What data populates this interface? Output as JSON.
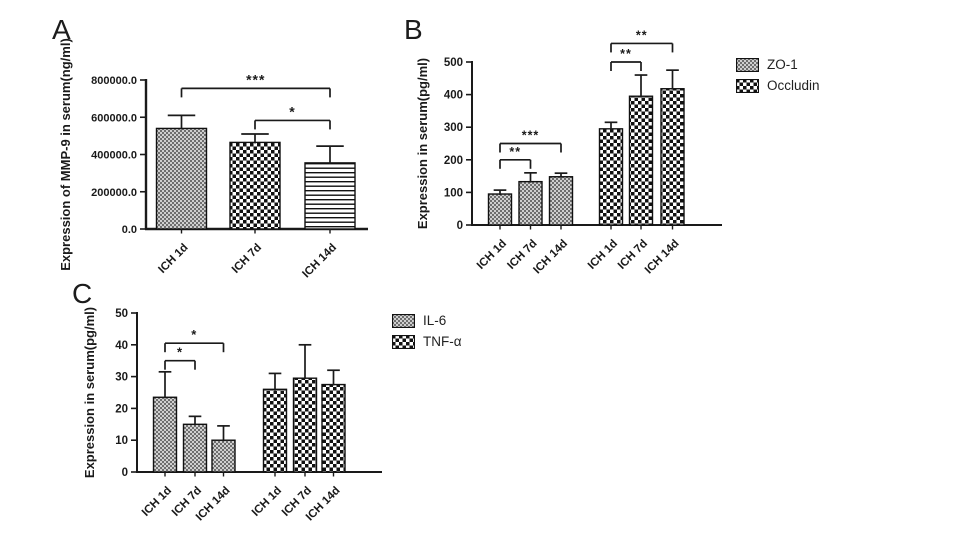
{
  "panels": {
    "a_label": "A",
    "b_label": "B",
    "c_label": "C"
  },
  "colors": {
    "axis": "#1a1a1a",
    "bar_stroke": "#111111",
    "stipple_dark": "#6e6e6e",
    "stipple_light": "#cfcfcf",
    "checker_dark": "#111111",
    "checker_light": "#ffffff",
    "background": "#ffffff"
  },
  "chart_data": [
    {
      "type": "bar",
      "panel": "A",
      "title": "",
      "xlabel": "",
      "ylabel": "Expression of MMP-9 in serum(ng/ml)",
      "ylim": [
        0,
        800000
      ],
      "grid": false,
      "legend_position": "none",
      "yticks": [
        {
          "value": 0,
          "label": "0.0"
        },
        {
          "value": 200000,
          "label": "200000.0"
        },
        {
          "value": 400000,
          "label": "400000.0"
        },
        {
          "value": 600000,
          "label": "600000.0"
        },
        {
          "value": 800000,
          "label": "800000.0"
        }
      ],
      "bars": [
        {
          "category": "ICH 1d",
          "series": "MMP-9",
          "value": 540000,
          "err_top": 610000,
          "pattern": "stipple"
        },
        {
          "category": "ICH 7d",
          "series": "MMP-9",
          "value": 465000,
          "err_top": 510000,
          "pattern": "checker"
        },
        {
          "category": "ICH 14d",
          "series": "MMP-9",
          "value": 355000,
          "err_top": 445000,
          "pattern": "hlines"
        }
      ],
      "significance": [
        {
          "bar1": 0,
          "bar2": 2,
          "label": "***",
          "y": 755000
        },
        {
          "bar1": 1,
          "bar2": 2,
          "label": "*",
          "y": 583000
        }
      ],
      "legend": []
    },
    {
      "type": "bar",
      "panel": "B",
      "title": "",
      "xlabel": "",
      "ylabel": "Expression in serum(pg/ml)",
      "ylim": [
        0,
        500
      ],
      "grid": false,
      "legend_position": "right",
      "yticks": [
        {
          "value": 0,
          "label": "0"
        },
        {
          "value": 100,
          "label": "100"
        },
        {
          "value": 200,
          "label": "200"
        },
        {
          "value": 300,
          "label": "300"
        },
        {
          "value": 400,
          "label": "400"
        },
        {
          "value": 500,
          "label": "500"
        }
      ],
      "bars": [
        {
          "category": "ICH 1d",
          "series": "ZO-1",
          "value": 95,
          "err_top": 107,
          "pattern": "stipple"
        },
        {
          "category": "ICH 7d",
          "series": "ZO-1",
          "value": 133,
          "err_top": 160,
          "pattern": "stipple"
        },
        {
          "category": "ICH 14d",
          "series": "ZO-1",
          "value": 148,
          "err_top": 159,
          "pattern": "stipple"
        },
        {
          "category": "ICH 1d",
          "series": "Occludin",
          "value": 295,
          "err_top": 315,
          "pattern": "checker"
        },
        {
          "category": "ICH 7d",
          "series": "Occludin",
          "value": 395,
          "err_top": 460,
          "pattern": "checker"
        },
        {
          "category": "ICH 14d",
          "series": "Occludin",
          "value": 418,
          "err_top": 475,
          "pattern": "checker"
        }
      ],
      "significance": [
        {
          "bar1": 0,
          "bar2": 1,
          "label": "**",
          "y": 200
        },
        {
          "bar1": 0,
          "bar2": 2,
          "label": "***",
          "y": 250
        },
        {
          "bar1": 3,
          "bar2": 4,
          "label": "**",
          "y": 500
        },
        {
          "bar1": 3,
          "bar2": 5,
          "label": "**",
          "y": 557
        }
      ],
      "legend": [
        {
          "label": "ZO-1",
          "pattern": "stipple"
        },
        {
          "label": "Occludin",
          "pattern": "checker"
        }
      ]
    },
    {
      "type": "bar",
      "panel": "C",
      "title": "",
      "xlabel": "",
      "ylabel": "Expression in serum(pg/ml)",
      "ylim": [
        0,
        50
      ],
      "grid": false,
      "legend_position": "right",
      "yticks": [
        {
          "value": 0,
          "label": "0"
        },
        {
          "value": 10,
          "label": "10"
        },
        {
          "value": 20,
          "label": "20"
        },
        {
          "value": 30,
          "label": "30"
        },
        {
          "value": 40,
          "label": "40"
        },
        {
          "value": 50,
          "label": "50"
        }
      ],
      "bars": [
        {
          "category": "ICH 1d",
          "series": "IL-6",
          "value": 23.5,
          "err_top": 31.5,
          "pattern": "stipple"
        },
        {
          "category": "ICH 7d",
          "series": "IL-6",
          "value": 15,
          "err_top": 17.5,
          "pattern": "stipple"
        },
        {
          "category": "ICH 14d",
          "series": "IL-6",
          "value": 10,
          "err_top": 14.5,
          "pattern": "stipple"
        },
        {
          "category": "ICH 1d",
          "series": "TNF-α",
          "value": 26,
          "err_top": 31,
          "pattern": "checker"
        },
        {
          "category": "ICH 7d",
          "series": "TNF-α",
          "value": 29.5,
          "err_top": 40,
          "pattern": "checker"
        },
        {
          "category": "ICH 14d",
          "series": "TNF-α",
          "value": 27.5,
          "err_top": 32,
          "pattern": "checker"
        }
      ],
      "significance": [
        {
          "bar1": 0,
          "bar2": 1,
          "label": "*",
          "y": 35
        },
        {
          "bar1": 0,
          "bar2": 2,
          "label": "*",
          "y": 40.5
        }
      ],
      "legend": [
        {
          "label": "IL-6",
          "pattern": "stipple"
        },
        {
          "label": "TNF-α",
          "pattern": "checker"
        }
      ]
    }
  ]
}
